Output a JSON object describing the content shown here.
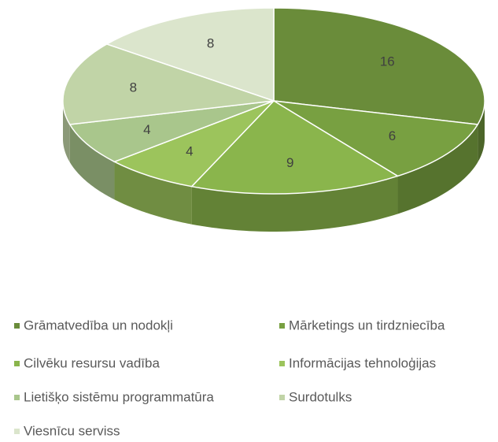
{
  "chart_data": {
    "type": "pie3d",
    "categories": [
      "Grāmatvedība un nodokļi",
      "Mārketings un tirdzniecība",
      "Cilvēku resursu vadība",
      "Informācijas tehnoloģijas",
      "Lietišķo sistēmu programmatūra",
      "Surdotulks",
      "Viesnīcu serviss"
    ],
    "values": [
      16,
      6,
      9,
      4,
      4,
      8,
      8
    ],
    "colors": [
      "#6a8c3a",
      "#78a041",
      "#8ab54c",
      "#9cc45c",
      "#a9c68c",
      "#c1d4a7",
      "#dbe5cc"
    ],
    "legend": "bottom"
  }
}
